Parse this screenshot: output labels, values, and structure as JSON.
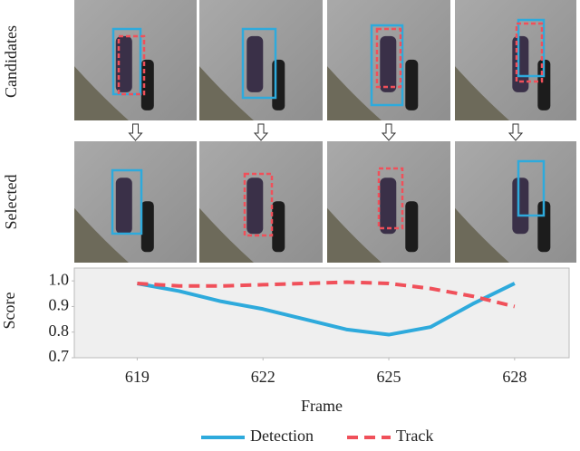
{
  "figure": {
    "row_labels": [
      "Candidates",
      "Selected"
    ]
  },
  "chart_data": {
    "type": "line",
    "x_label": "Frame",
    "y_label": "Score",
    "x": [
      619,
      620,
      621,
      622,
      623,
      624,
      625,
      626,
      627,
      628
    ],
    "series": [
      {
        "name": "Detection",
        "color": "#2eaadc",
        "dash": false,
        "values": [
          0.99,
          0.96,
          0.92,
          0.89,
          0.85,
          0.81,
          0.79,
          0.82,
          0.91,
          0.99
        ]
      },
      {
        "name": "Track",
        "color": "#f0505a",
        "dash": true,
        "values": [
          0.99,
          0.98,
          0.98,
          0.985,
          0.99,
          0.995,
          0.99,
          0.97,
          0.94,
          0.9
        ]
      }
    ],
    "xlim": [
      617.5,
      629.3
    ],
    "ylim": [
      0.7,
      1.05
    ],
    "xticks": [
      619,
      622,
      625,
      628
    ],
    "yticks": [
      0.7,
      0.8,
      0.9,
      {
        "value": 1,
        "label": "1.0"
      }
    ],
    "legend": "bottom"
  }
}
